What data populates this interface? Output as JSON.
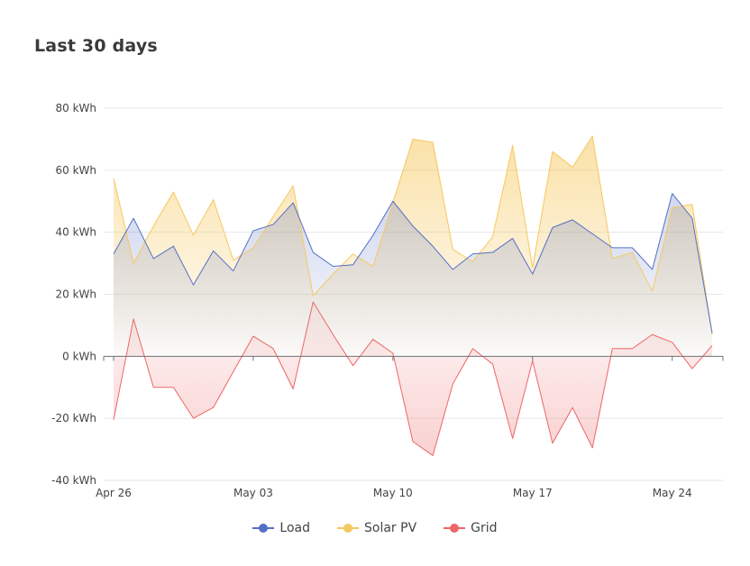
{
  "title": "Last 30 days",
  "colors": {
    "load": "#5470c6",
    "solar": "#f6c85f",
    "grid": "#ee6666"
  },
  "chart_data": {
    "type": "area",
    "title": "Last 30 days",
    "ylim": [
      -40,
      80
    ],
    "yticks": [
      "80 kWh",
      "60 kWh",
      "40 kWh",
      "20 kWh",
      "0 kWh",
      "-20 kWh",
      "-40 kWh"
    ],
    "ytick_values": [
      80,
      60,
      40,
      20,
      0,
      -20,
      -40
    ],
    "xticks": [
      "Apr 26",
      "May 03",
      "May 10",
      "May 17",
      "May 24"
    ],
    "xtick_indices": [
      0,
      7,
      14,
      21,
      28
    ],
    "x": [
      "Apr 26",
      "Apr 27",
      "Apr 28",
      "Apr 29",
      "Apr 30",
      "May 01",
      "May 02",
      "May 03",
      "May 04",
      "May 05",
      "May 06",
      "May 07",
      "May 08",
      "May 09",
      "May 10",
      "May 11",
      "May 12",
      "May 13",
      "May 14",
      "May 15",
      "May 16",
      "May 17",
      "May 18",
      "May 19",
      "May 20",
      "May 21",
      "May 22",
      "May 23",
      "May 24",
      "May 25",
      "May 26"
    ],
    "grid": true,
    "legend": "bottom-center",
    "series": [
      {
        "name": "Load",
        "values": [
          33,
          44.5,
          31.5,
          35.5,
          23,
          34,
          27.5,
          40.5,
          42.5,
          49.5,
          33.5,
          29,
          29.5,
          39,
          50,
          42,
          35.5,
          28,
          33,
          33.5,
          38,
          26.5,
          41.5,
          44,
          39.5,
          35,
          35,
          28,
          52.5,
          44.5,
          7.5
        ]
      },
      {
        "name": "Solar PV",
        "values": [
          57.5,
          30,
          42,
          53,
          39,
          50.5,
          31,
          35,
          45,
          55,
          19.5,
          26.5,
          33,
          29,
          49.5,
          70,
          69,
          34.5,
          30.5,
          38.5,
          68,
          28.5,
          66,
          61,
          71,
          31.5,
          33.5,
          21,
          48,
          49,
          7
        ]
      },
      {
        "name": "Grid",
        "values": [
          -20.5,
          12,
          -10,
          -10,
          -20,
          -16.5,
          -5,
          6.5,
          2.5,
          -10.5,
          17.5,
          7,
          -3,
          5.5,
          1,
          -27.5,
          -32,
          -9,
          2.5,
          -2.5,
          -26.5,
          -1.5,
          -28,
          -16.5,
          -29.5,
          2.5,
          2.5,
          7,
          4.5,
          -4,
          3.5
        ]
      }
    ]
  },
  "legend": {
    "items": [
      "Load",
      "Solar PV",
      "Grid"
    ]
  }
}
